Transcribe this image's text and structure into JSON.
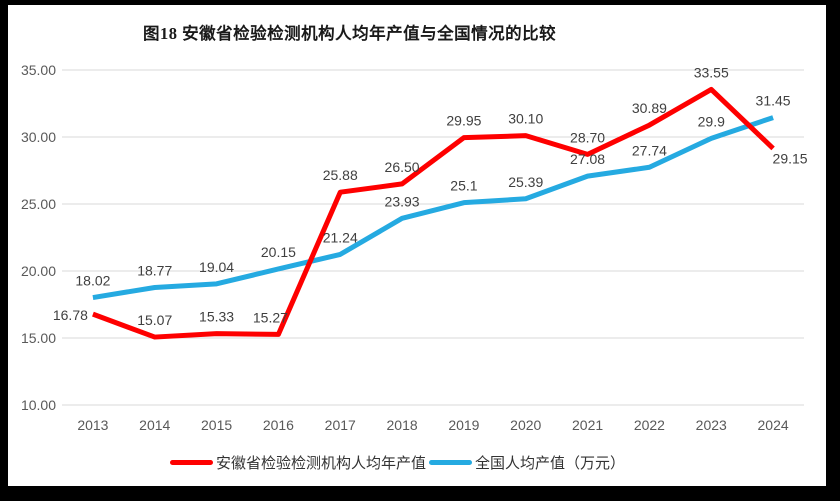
{
  "chart_data": {
    "type": "line",
    "title": "图18 安徽省检验检测机构人均年产值与全国情况的比较",
    "categories": [
      "2013",
      "2014",
      "2015",
      "2016",
      "2017",
      "2018",
      "2019",
      "2020",
      "2021",
      "2022",
      "2023",
      "2024"
    ],
    "series": [
      {
        "name": "安徽省检验检测机构人均年产值",
        "color": "#FE0000",
        "values": [
          16.78,
          15.07,
          15.33,
          15.27,
          25.88,
          26.5,
          29.95,
          30.1,
          28.7,
          30.89,
          33.55,
          29.15
        ],
        "labels": [
          "16.78",
          "15.07",
          "15.33",
          "15.27",
          "25.88",
          "26.50",
          "29.95",
          "30.10",
          "28.70",
          "30.89",
          "33.55",
          "29.15"
        ],
        "label_pos": [
          "left",
          "above",
          "above",
          "above-left",
          "above",
          "above",
          "above",
          "above",
          "above",
          "above",
          "above",
          "below-right"
        ]
      },
      {
        "name": "全国人均产值（万元）",
        "color": "#25AAE1",
        "values": [
          18.02,
          18.77,
          19.04,
          20.15,
          21.24,
          23.93,
          25.1,
          25.39,
          27.08,
          27.74,
          29.9,
          31.45
        ],
        "labels": [
          "18.02",
          "18.77",
          "19.04",
          "20.15",
          "21.24",
          "23.93",
          "25.1",
          "25.39",
          "27.08",
          "27.74",
          "29.9",
          "31.45"
        ],
        "label_pos": [
          "above",
          "above",
          "above",
          "above",
          "above",
          "above",
          "above",
          "above",
          "above",
          "above",
          "above",
          "above"
        ]
      }
    ],
    "ylim": [
      10,
      35
    ],
    "ytick_labels": [
      "10.00",
      "15.00",
      "20.00",
      "25.00",
      "30.00",
      "35.00"
    ],
    "grid": true,
    "legend_position": "bottom"
  },
  "colors": {
    "grid": "#D9D9D9",
    "tick_text": "#595959",
    "data_label_text": "#404040",
    "title_text": "#1A1A1A",
    "frame": "#000000"
  }
}
